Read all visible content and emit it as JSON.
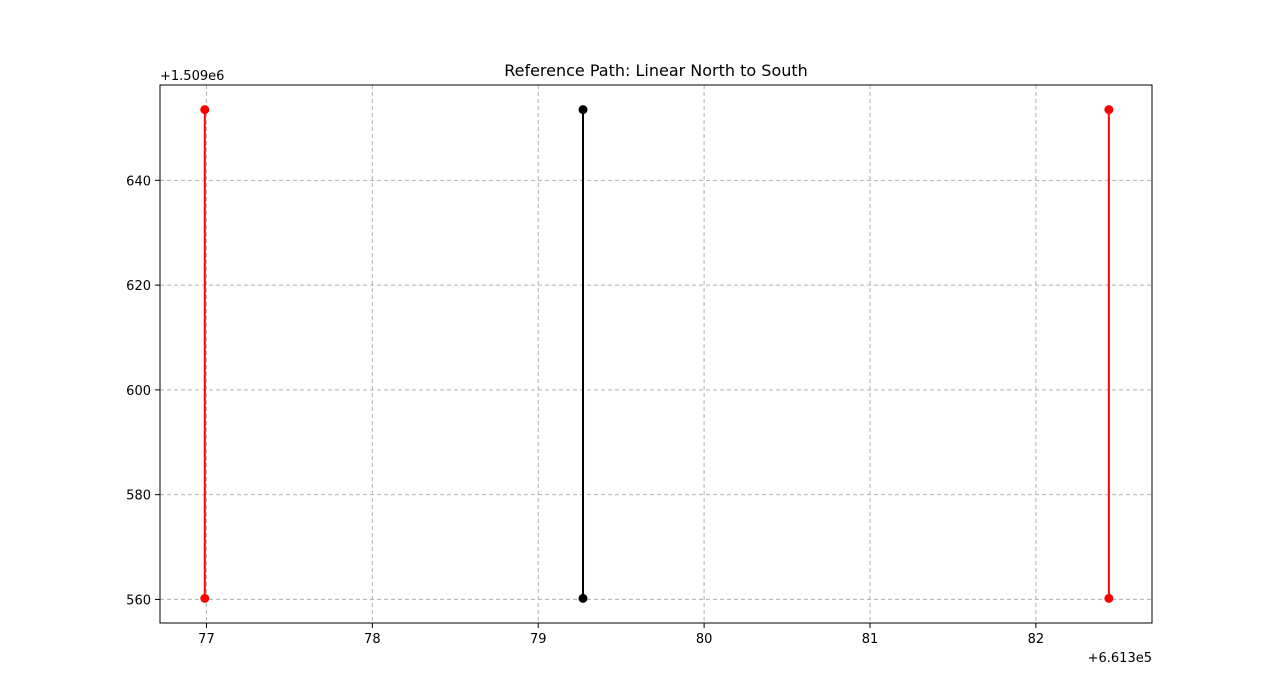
{
  "colors": {
    "background": "#ffffff",
    "axes": "#000000",
    "grid": "#b0b0b0",
    "reference_path": "#000000",
    "boundary_path": "#ff0000"
  },
  "chart_data": {
    "type": "line",
    "title": "Reference Path: Linear North to South",
    "xlabel": "",
    "ylabel": "",
    "x_offset_label": "+6.613e5",
    "y_offset_label": "+1.509e6",
    "x_offset": 661300,
    "y_offset": 1509000,
    "xlim": [
      76.72,
      82.7
    ],
    "ylim": [
      555.5,
      658.2
    ],
    "x_ticks": [
      77,
      78,
      79,
      80,
      81,
      82
    ],
    "x_tick_labels": [
      "77",
      "78",
      "79",
      "80",
      "81",
      "82"
    ],
    "y_ticks": [
      560,
      580,
      600,
      620,
      640
    ],
    "y_tick_labels": [
      "560",
      "580",
      "600",
      "620",
      "640"
    ],
    "grid": true,
    "grid_style": "dashed",
    "legend": "none",
    "series": [
      {
        "color": "#ff0000",
        "marker": "circle",
        "points": [
          [
            76.99,
            653.5
          ],
          [
            76.99,
            560.2
          ]
        ]
      },
      {
        "color": "#000000",
        "marker": "circle",
        "points": [
          [
            79.27,
            653.5
          ],
          [
            79.27,
            560.2
          ]
        ]
      },
      {
        "color": "#ff0000",
        "marker": "circle",
        "points": [
          [
            82.44,
            653.5
          ],
          [
            82.44,
            560.2
          ]
        ]
      }
    ]
  }
}
